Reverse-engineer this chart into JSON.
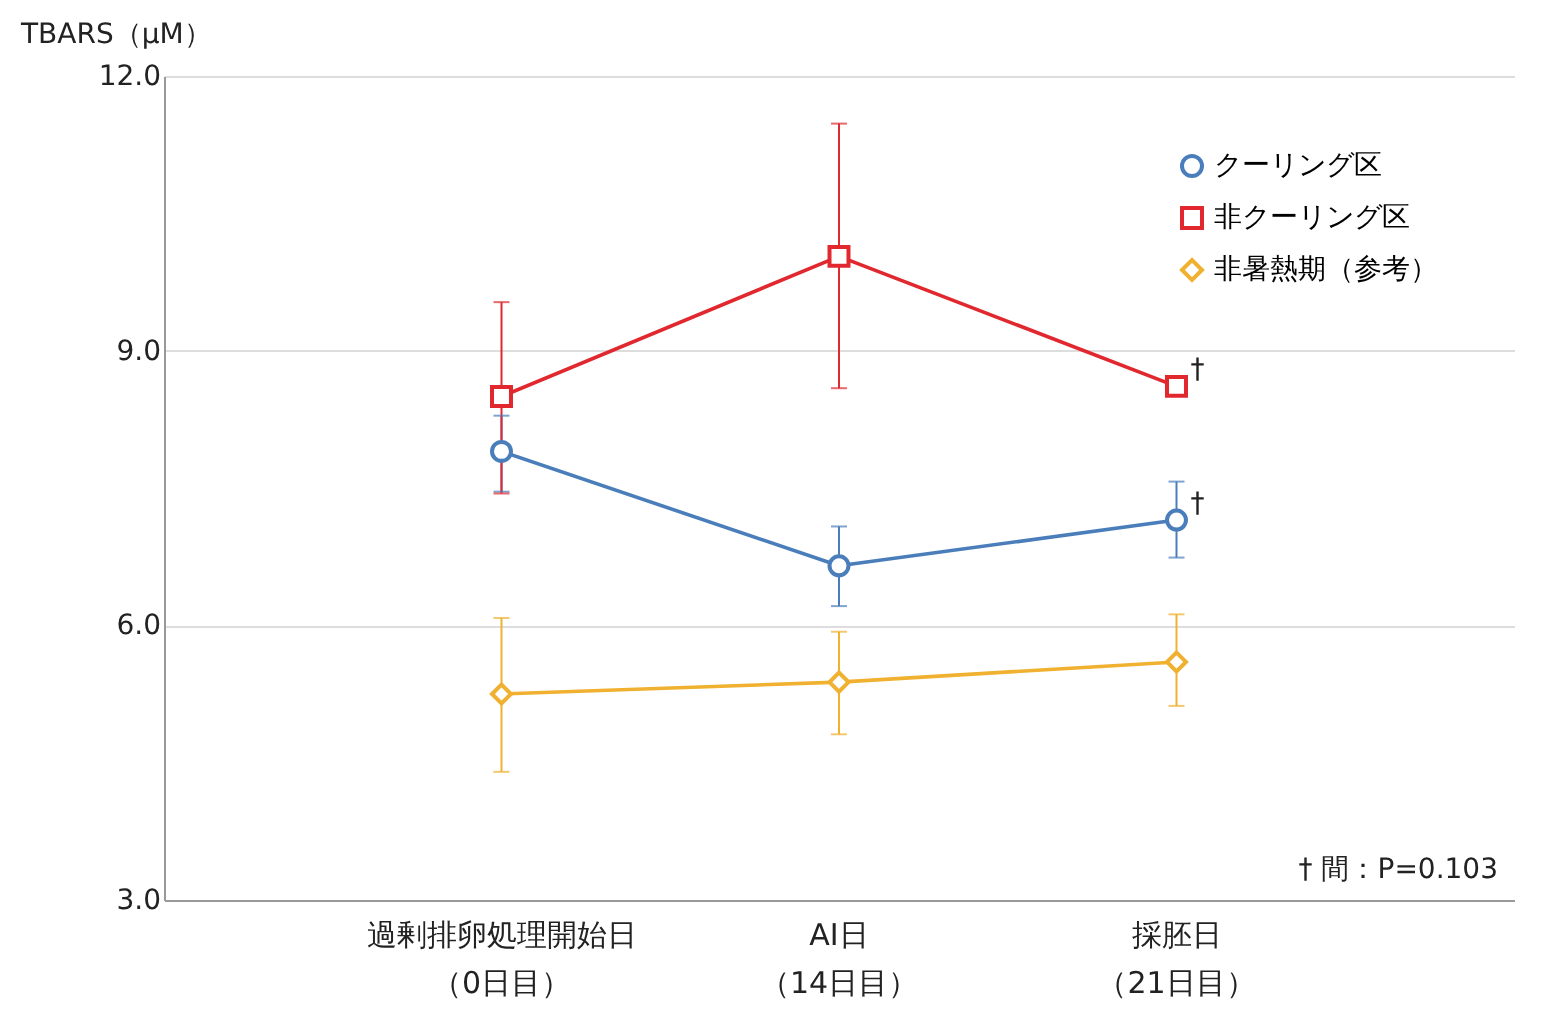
{
  "chart_data": {
    "type": "line",
    "ylabel": "TBARS（μM）",
    "categories": [
      "過剰排卵処理開始日（0日目）",
      "AI日（14日目）",
      "採胚日（21日目）"
    ],
    "series": [
      {
        "name": "クーリング区",
        "color": "#4a7ebb",
        "marker": "circle",
        "values": [
          7.9,
          6.65,
          7.15
        ],
        "errors": [
          [
            7.46,
            8.29
          ],
          [
            6.21,
            7.08
          ],
          [
            6.74,
            7.57
          ]
        ]
      },
      {
        "name": "非クーリング区",
        "color": "#e0282e",
        "marker": "square",
        "values": [
          8.5,
          10.03,
          8.61
        ],
        "errors": [
          [
            7.44,
            9.53
          ],
          [
            8.59,
            11.48
          ],
          null
        ]
      },
      {
        "name": "非暑熱期（参考）",
        "color": "#f0b030",
        "marker": "diamond",
        "values": [
          5.25,
          5.38,
          5.6
        ],
        "errors": [
          [
            4.4,
            6.08
          ],
          [
            4.81,
            5.93
          ],
          [
            5.12,
            6.12
          ]
        ]
      }
    ],
    "ylim": [
      3,
      12
    ],
    "yticks": [
      {
        "value": 3,
        "label": "3.0"
      },
      {
        "value": 6,
        "label": "6.0"
      },
      {
        "value": 9,
        "label": "9.0"
      },
      {
        "value": 12,
        "label": "12.0"
      }
    ],
    "grid": "y",
    "legend": "top right",
    "line_style": "solid",
    "annotations": [
      {
        "text": "†",
        "x": "採胚日（21日目）",
        "y": 8.61
      },
      {
        "text": "†",
        "x": "採胚日（21日目）",
        "y": 7.15
      },
      "† 間：P=0.103"
    ]
  }
}
